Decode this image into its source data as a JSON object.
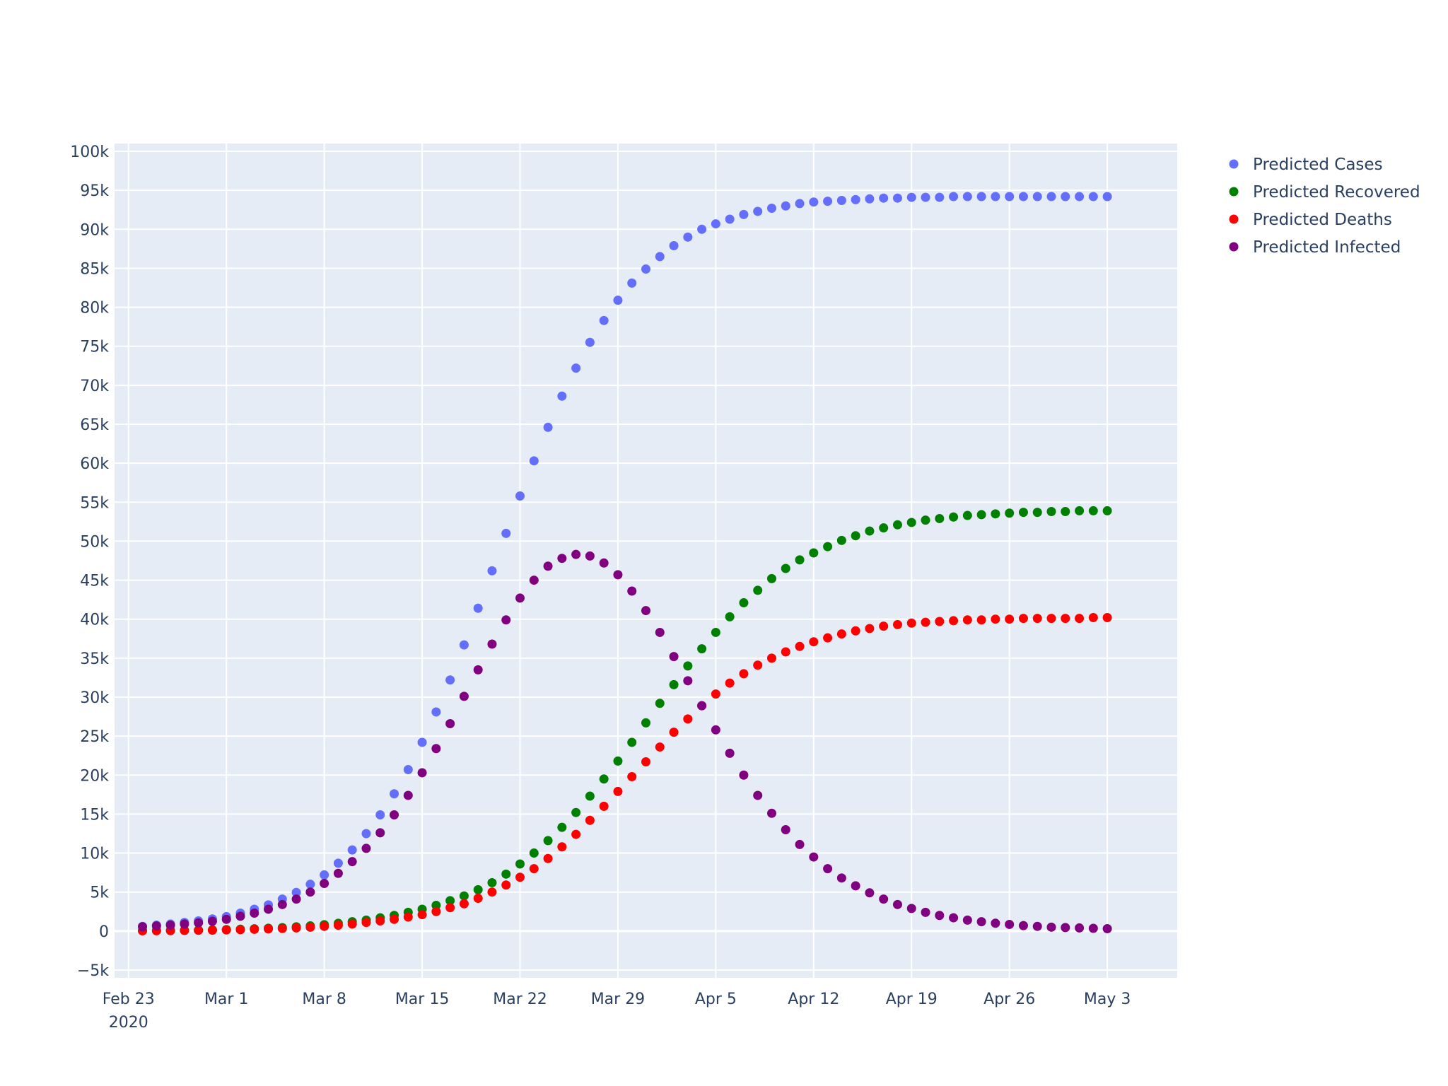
{
  "chart_data": {
    "type": "scatter",
    "x_axis": {
      "kind": "date",
      "range": [
        "2020-02-22",
        "2020-05-08"
      ],
      "ticks": [
        {
          "date": "2020-02-23",
          "label": "Feb 23",
          "sublabel": "2020"
        },
        {
          "date": "2020-03-01",
          "label": "Mar 1"
        },
        {
          "date": "2020-03-08",
          "label": "Mar 8"
        },
        {
          "date": "2020-03-15",
          "label": "Mar 15"
        },
        {
          "date": "2020-03-22",
          "label": "Mar 22"
        },
        {
          "date": "2020-03-29",
          "label": "Mar 29"
        },
        {
          "date": "2020-04-05",
          "label": "Apr 5"
        },
        {
          "date": "2020-04-12",
          "label": "Apr 12"
        },
        {
          "date": "2020-04-19",
          "label": "Apr 19"
        },
        {
          "date": "2020-04-26",
          "label": "Apr 26"
        },
        {
          "date": "2020-05-03",
          "label": "May 3"
        }
      ]
    },
    "y_axis": {
      "range": [
        -6000,
        101000
      ],
      "ticks": [
        {
          "value": -5000,
          "label": "−5k"
        },
        {
          "value": 0,
          "label": "0"
        },
        {
          "value": 5000,
          "label": "5k"
        },
        {
          "value": 10000,
          "label": "10k"
        },
        {
          "value": 15000,
          "label": "15k"
        },
        {
          "value": 20000,
          "label": "20k"
        },
        {
          "value": 25000,
          "label": "25k"
        },
        {
          "value": 30000,
          "label": "30k"
        },
        {
          "value": 35000,
          "label": "35k"
        },
        {
          "value": 40000,
          "label": "40k"
        },
        {
          "value": 45000,
          "label": "45k"
        },
        {
          "value": 50000,
          "label": "50k"
        },
        {
          "value": 55000,
          "label": "55k"
        },
        {
          "value": 60000,
          "label": "60k"
        },
        {
          "value": 65000,
          "label": "65k"
        },
        {
          "value": 70000,
          "label": "70k"
        },
        {
          "value": 75000,
          "label": "75k"
        },
        {
          "value": 80000,
          "label": "80k"
        },
        {
          "value": 85000,
          "label": "85k"
        },
        {
          "value": 90000,
          "label": "90k"
        },
        {
          "value": 95000,
          "label": "95k"
        },
        {
          "value": 100000,
          "label": "100k"
        }
      ]
    },
    "grid": true,
    "legend_position": "top-right",
    "x": [
      "2020-02-24",
      "2020-02-25",
      "2020-02-26",
      "2020-02-27",
      "2020-02-28",
      "2020-02-29",
      "2020-03-01",
      "2020-03-02",
      "2020-03-03",
      "2020-03-04",
      "2020-03-05",
      "2020-03-06",
      "2020-03-07",
      "2020-03-08",
      "2020-03-09",
      "2020-03-10",
      "2020-03-11",
      "2020-03-12",
      "2020-03-13",
      "2020-03-14",
      "2020-03-15",
      "2020-03-16",
      "2020-03-17",
      "2020-03-18",
      "2020-03-19",
      "2020-03-20",
      "2020-03-21",
      "2020-03-22",
      "2020-03-23",
      "2020-03-24",
      "2020-03-25",
      "2020-03-26",
      "2020-03-27",
      "2020-03-28",
      "2020-03-29",
      "2020-03-30",
      "2020-03-31",
      "2020-04-01",
      "2020-04-02",
      "2020-04-03",
      "2020-04-04",
      "2020-04-05",
      "2020-04-06",
      "2020-04-07",
      "2020-04-08",
      "2020-04-09",
      "2020-04-10",
      "2020-04-11",
      "2020-04-12",
      "2020-04-13",
      "2020-04-14",
      "2020-04-15",
      "2020-04-16",
      "2020-04-17",
      "2020-04-18",
      "2020-04-19",
      "2020-04-20",
      "2020-04-21",
      "2020-04-22",
      "2020-04-23",
      "2020-04-24",
      "2020-04-25",
      "2020-04-26",
      "2020-04-27",
      "2020-04-28",
      "2020-04-29",
      "2020-04-30",
      "2020-05-01",
      "2020-05-02",
      "2020-05-03"
    ],
    "series": [
      {
        "name": "Predicted Cases",
        "color": "#636efa",
        "values": [
          600,
          750,
          900,
          1100,
          1300,
          1550,
          1850,
          2300,
          2800,
          3350,
          4100,
          4950,
          6000,
          7200,
          8700,
          10400,
          12500,
          14900,
          17600,
          20700,
          24200,
          28100,
          32200,
          36700,
          41400,
          46200,
          51000,
          55800,
          60300,
          64600,
          68600,
          72200,
          75500,
          78300,
          80900,
          83100,
          84900,
          86500,
          87900,
          89000,
          90000,
          90700,
          91300,
          91900,
          92300,
          92700,
          93000,
          93300,
          93500,
          93600,
          93700,
          93800,
          93900,
          94000,
          94000,
          94100,
          94100,
          94100,
          94200,
          94200,
          94200,
          94200,
          94200,
          94200,
          94200,
          94200,
          94200,
          94200,
          94200,
          94200
        ]
      },
      {
        "name": "Predicted Recovered",
        "color": "#008000",
        "values": [
          50,
          60,
          80,
          100,
          120,
          150,
          190,
          230,
          290,
          360,
          440,
          540,
          660,
          810,
          990,
          1200,
          1400,
          1700,
          2000,
          2400,
          2800,
          3300,
          3900,
          4500,
          5300,
          6200,
          7300,
          8600,
          10000,
          11600,
          13300,
          15200,
          17300,
          19500,
          21800,
          24200,
          26700,
          29200,
          31600,
          34000,
          36200,
          38300,
          40300,
          42100,
          43700,
          45200,
          46500,
          47600,
          48500,
          49300,
          50100,
          50700,
          51300,
          51700,
          52100,
          52400,
          52700,
          52900,
          53100,
          53300,
          53400,
          53500,
          53600,
          53700,
          53700,
          53800,
          53800,
          53900,
          53900,
          53900
        ]
      },
      {
        "name": "Predicted Deaths",
        "color": "#ff0000",
        "values": [
          30,
          40,
          50,
          70,
          90,
          110,
          140,
          170,
          220,
          270,
          330,
          400,
          490,
          600,
          740,
          900,
          1100,
          1300,
          1500,
          1800,
          2100,
          2500,
          3000,
          3500,
          4200,
          5000,
          5900,
          6900,
          8000,
          9300,
          10800,
          12400,
          14200,
          16000,
          17900,
          19800,
          21700,
          23600,
          25500,
          27200,
          28900,
          30400,
          31800,
          33000,
          34100,
          35000,
          35800,
          36500,
          37100,
          37600,
          38100,
          38500,
          38800,
          39100,
          39300,
          39500,
          39600,
          39700,
          39800,
          39900,
          39900,
          40000,
          40000,
          40100,
          40100,
          40100,
          40100,
          40100,
          40200,
          40200
        ]
      },
      {
        "name": "Predicted Infected",
        "color": "#800080",
        "values": [
          550,
          650,
          750,
          900,
          1050,
          1250,
          1500,
          1900,
          2300,
          2800,
          3400,
          4100,
          5000,
          6100,
          7400,
          8900,
          10600,
          12600,
          14900,
          17400,
          20300,
          23400,
          26600,
          30100,
          33500,
          36800,
          39900,
          42700,
          45000,
          46800,
          47800,
          48300,
          48100,
          47200,
          45700,
          43600,
          41100,
          38300,
          35200,
          32100,
          28900,
          25800,
          22800,
          20000,
          17400,
          15100,
          13000,
          11100,
          9500,
          8000,
          6800,
          5800,
          4900,
          4100,
          3400,
          2900,
          2400,
          2000,
          1700,
          1400,
          1200,
          1000,
          850,
          700,
          600,
          500,
          450,
          400,
          350,
          300
        ]
      }
    ]
  }
}
